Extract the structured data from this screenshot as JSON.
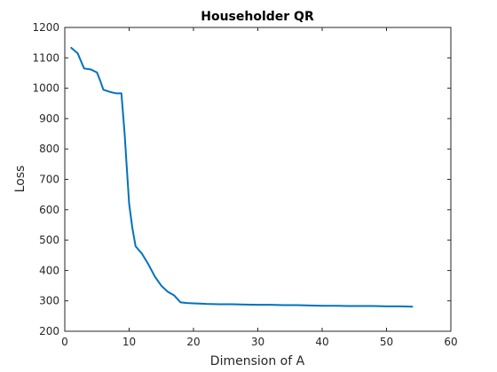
{
  "chart_data": {
    "type": "line",
    "title": "Householder QR",
    "xlabel": "Dimension of A",
    "ylabel": "Loss",
    "xlim": [
      0,
      60
    ],
    "ylim": [
      200,
      1200
    ],
    "xticks": [
      0,
      10,
      20,
      30,
      40,
      50,
      60
    ],
    "yticks": [
      200,
      300,
      400,
      500,
      600,
      700,
      800,
      900,
      1000,
      1100,
      1200
    ],
    "grid": false,
    "series": [
      {
        "color": "#0072BD",
        "x": [
          1,
          2,
          3,
          4,
          5,
          5.5,
          6,
          7,
          8,
          8.8,
          9.3,
          9.6,
          10,
          10.5,
          11,
          12,
          13,
          14,
          15,
          16,
          17,
          18,
          19,
          20,
          21,
          22,
          24,
          26,
          28,
          30,
          32,
          34,
          36,
          38,
          40,
          42,
          44,
          46,
          48,
          50,
          52,
          54
        ],
        "y": [
          1133,
          1115,
          1065,
          1062,
          1052,
          1025,
          995,
          988,
          983,
          983,
          850,
          750,
          620,
          540,
          480,
          455,
          420,
          380,
          350,
          330,
          318,
          295,
          293,
          292,
          291,
          290,
          289,
          289,
          288,
          287,
          287,
          286,
          286,
          285,
          284,
          284,
          283,
          283,
          283,
          282,
          282,
          281
        ]
      }
    ]
  }
}
